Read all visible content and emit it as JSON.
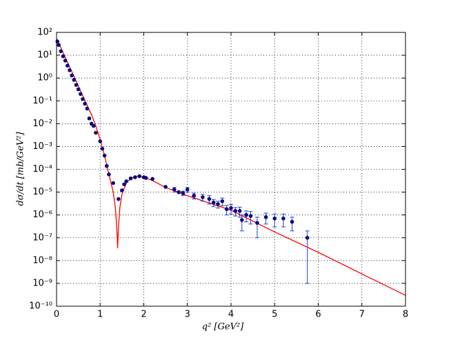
{
  "chart_data": {
    "type": "scatter",
    "x_label": "q² [GeV²]",
    "y_label": "dσ/dt [mb/GeV²]",
    "log_y": true,
    "grid": true,
    "xlim": [
      0,
      8
    ],
    "xticks": [
      0,
      1,
      2,
      3,
      4,
      5,
      6,
      7,
      8
    ],
    "ylim": [
      1e-10,
      100
    ],
    "yticks": [
      {
        "value": 1e-10,
        "label": "10⁻¹⁰"
      },
      {
        "value": 1e-09,
        "label": "10⁻⁹"
      },
      {
        "value": 1e-08,
        "label": "10⁻⁸"
      },
      {
        "value": 1e-07,
        "label": "10⁻⁷"
      },
      {
        "value": 1e-06,
        "label": "10⁻⁶"
      },
      {
        "value": 1e-05,
        "label": "10⁻⁵"
      },
      {
        "value": 0.0001,
        "label": "10⁻⁴"
      },
      {
        "value": 0.001,
        "label": "10⁻³"
      },
      {
        "value": 0.01,
        "label": "10⁻²"
      },
      {
        "value": 0.1,
        "label": "10⁻¹"
      },
      {
        "value": 1,
        "label": "10⁰"
      },
      {
        "value": 10,
        "label": "10¹"
      },
      {
        "value": 100,
        "label": "10²"
      }
    ],
    "points": {
      "color": "#0b0b80",
      "error_color": "#1f3fd0",
      "x": [
        0.02,
        0.05,
        0.1,
        0.15,
        0.2,
        0.25,
        0.3,
        0.35,
        0.4,
        0.45,
        0.5,
        0.55,
        0.6,
        0.65,
        0.7,
        0.75,
        0.8,
        0.85,
        0.9,
        1.0,
        1.05,
        1.1,
        1.15,
        1.2,
        1.3,
        1.42,
        1.5,
        1.55,
        1.6,
        1.7,
        1.8,
        1.9,
        2.0,
        2.05,
        2.2,
        2.5,
        2.7,
        2.8,
        2.9,
        3.0,
        3.15,
        3.35,
        3.5,
        3.6,
        3.7,
        3.8,
        3.9,
        4.0,
        4.1,
        4.2,
        4.25,
        4.35,
        4.45,
        4.6,
        4.8,
        5.0,
        5.2,
        5.4,
        5.75
      ],
      "values": [
        40,
        28,
        15,
        9,
        5.8,
        3.5,
        2.2,
        1.3,
        0.83,
        0.5,
        0.32,
        0.2,
        0.12,
        0.075,
        0.046,
        0.017,
        0.01,
        0.008,
        0.004,
        0.0017,
        0.0008,
        0.0004,
        0.00014,
        6e-05,
        2.5e-05,
        5e-06,
        1.2e-05,
        2.2e-05,
        3e-05,
        4e-05,
        4.5e-05,
        5e-05,
        4.5e-05,
        4.2e-05,
        3.8e-05,
        1.7e-05,
        1.3e-05,
        1e-05,
        9e-06,
        1.3e-05,
        7e-06,
        6e-06,
        5e-06,
        3.5e-06,
        3e-06,
        4e-06,
        1.8e-06,
        2e-06,
        1.5e-06,
        1.5e-06,
        6e-07,
        1e-06,
        9e-07,
        4.5e-07,
        8e-07,
        7e-07,
        7e-07,
        5e-07,
        1e-07
      ],
      "errors": [
        4,
        2.8,
        1.5,
        0.9,
        0.6,
        0.35,
        0.22,
        0.13,
        0.08,
        0.05,
        0.03,
        0.02,
        0.012,
        0.008,
        0.005,
        0.002,
        0.001,
        0.001,
        0.0005,
        0.0002,
        0.0001,
        5e-05,
        2e-05,
        1e-05,
        4e-06,
        1e-06,
        2e-06,
        3e-06,
        4e-06,
        5e-06,
        5e-06,
        5e-06,
        5e-06,
        5e-06,
        5e-06,
        3e-06,
        3e-06,
        2e-06,
        2e-06,
        3e-06,
        2e-06,
        2e-06,
        2e-06,
        1.2e-06,
        1e-06,
        1.5e-06,
        8e-07,
        9e-07,
        6e-07,
        7e-07,
        4e-07,
        5e-07,
        5e-07,
        3.5e-07,
        4e-07,
        4e-07,
        4e-07,
        3e-07,
        9.9e-08
      ]
    },
    "model": {
      "color": "#ff0000",
      "x": [
        0,
        0.2,
        0.4,
        0.6,
        0.8,
        0.9,
        1.0,
        1.1,
        1.2,
        1.3,
        1.35,
        1.38,
        1.4,
        1.42,
        1.45,
        1.5,
        1.6,
        1.7,
        1.85,
        2.0,
        2.2,
        2.5,
        3,
        4,
        5,
        6,
        7,
        8
      ],
      "values": [
        55,
        8,
        1.2,
        0.17,
        0.025,
        0.008,
        0.002,
        0.0004,
        6e-05,
        1e-05,
        2e-06,
        3e-07,
        3.5e-08,
        3e-07,
        2e-06,
        8e-06,
        2.5e-05,
        4e-05,
        5e-05,
        4.5e-05,
        3.2e-05,
        1.6e-05,
        7e-06,
        1.6e-06,
        1.8e-07,
        2.3e-08,
        2.6e-09,
        3e-10
      ]
    }
  }
}
